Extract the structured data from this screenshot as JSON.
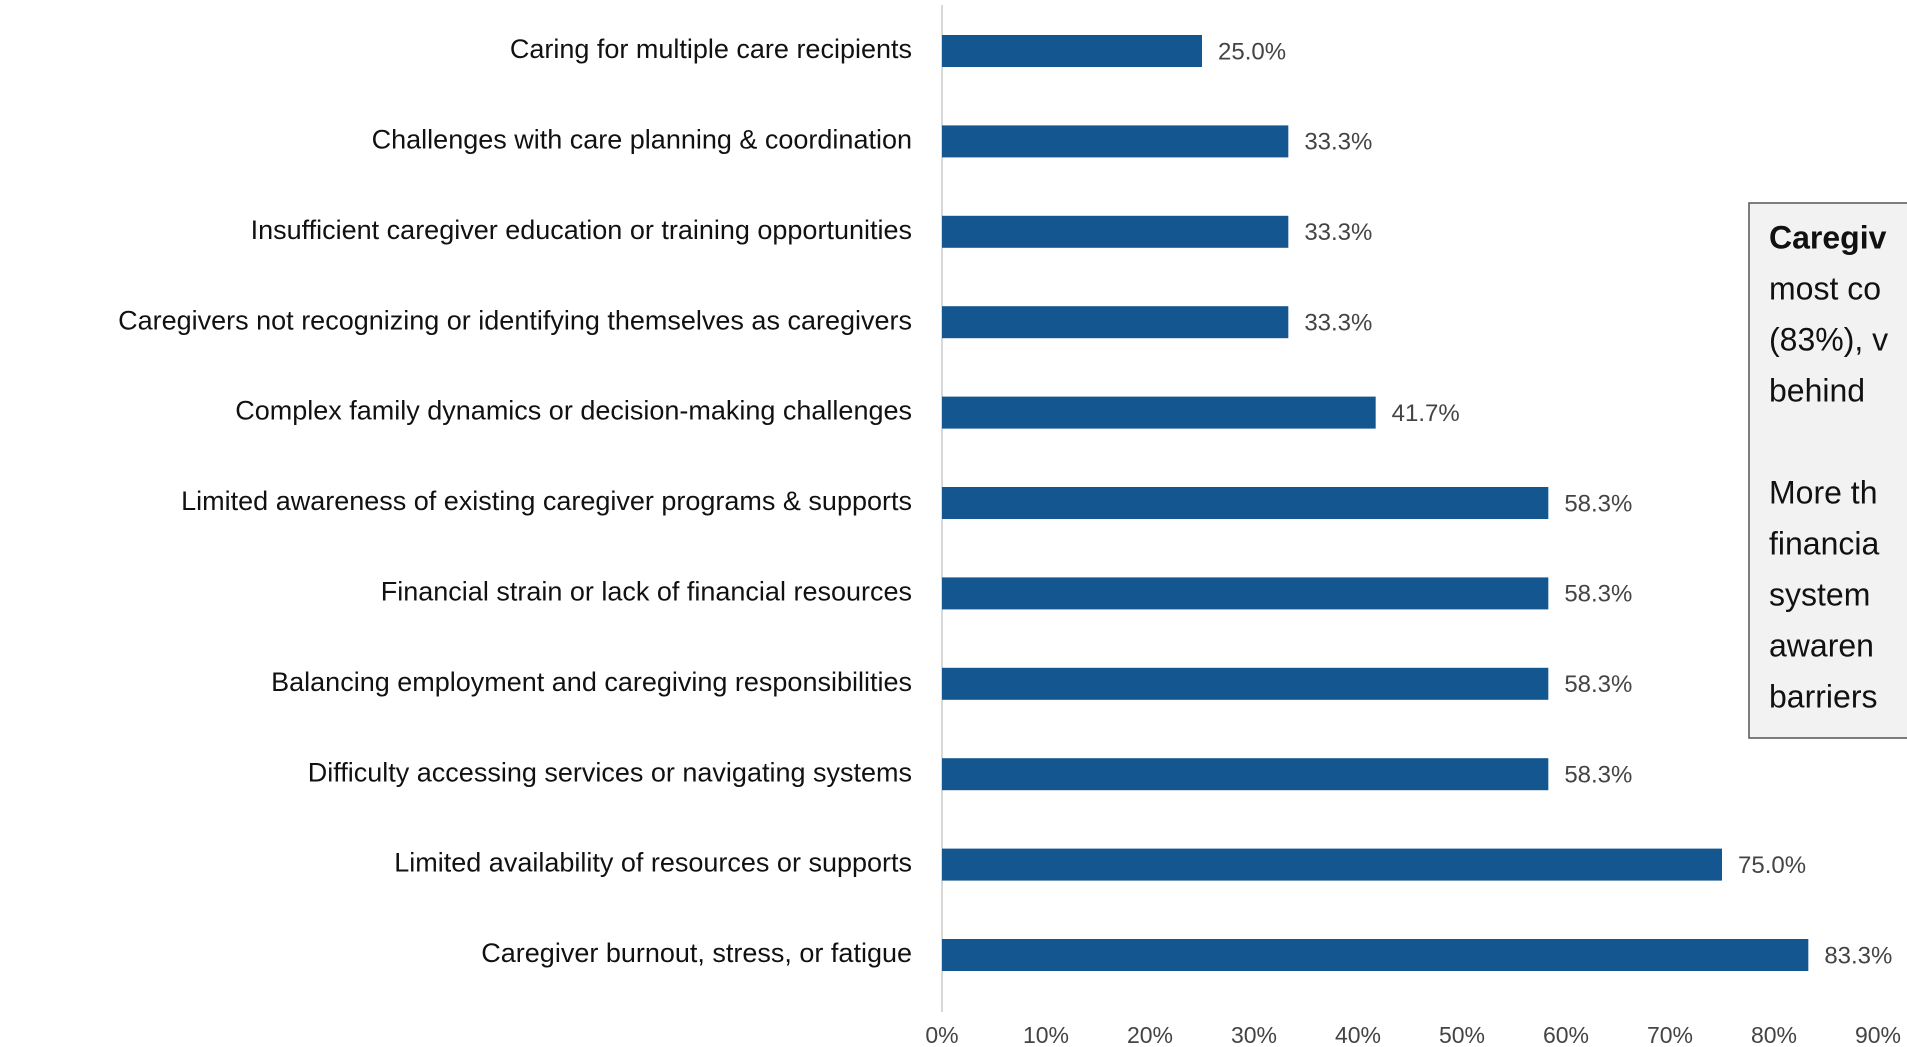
{
  "chart_data": {
    "type": "bar",
    "orientation": "horizontal",
    "color": "#14568f",
    "categories": [
      "Caring for multiple care recipients",
      "Challenges with care planning & coordination",
      "Insufficient caregiver education or training opportunities",
      "Caregivers not recognizing or identifying themselves as caregivers",
      "Complex family dynamics or decision-making challenges",
      "Limited awareness of existing caregiver programs & supports",
      "Financial strain or lack of financial resources",
      "Balancing employment and caregiving responsibilities",
      "Difficulty accessing services or navigating systems",
      "Limited availability of resources or supports",
      "Caregiver burnout, stress, or fatigue"
    ],
    "values": [
      25.0,
      33.3,
      33.3,
      33.3,
      41.7,
      58.3,
      58.3,
      58.3,
      58.3,
      75.0,
      83.3
    ],
    "value_labels": [
      "25.0%",
      "33.3%",
      "33.3%",
      "33.3%",
      "41.7%",
      "58.3%",
      "58.3%",
      "58.3%",
      "58.3%",
      "75.0%",
      "83.3%"
    ],
    "xlim": [
      0,
      90
    ],
    "xticks": [
      {
        "value": 0,
        "label": "0%"
      },
      {
        "value": 10,
        "label": "10%"
      },
      {
        "value": 20,
        "label": "20%"
      },
      {
        "value": 30,
        "label": "30%"
      },
      {
        "value": 40,
        "label": "40%"
      },
      {
        "value": 50,
        "label": "50%"
      },
      {
        "value": 60,
        "label": "60%"
      },
      {
        "value": 70,
        "label": "70%"
      },
      {
        "value": 80,
        "label": "80%"
      },
      {
        "value": 90,
        "label": "90%"
      }
    ],
    "annotation_lines": [
      [
        "Caregiv"
      ],
      [
        "most co"
      ],
      [
        "(83%), v"
      ],
      [
        "behind"
      ],
      [],
      [
        "More th"
      ],
      [
        "financia"
      ],
      [
        "system"
      ],
      [
        "awaren"
      ],
      [
        "barriers"
      ]
    ]
  }
}
